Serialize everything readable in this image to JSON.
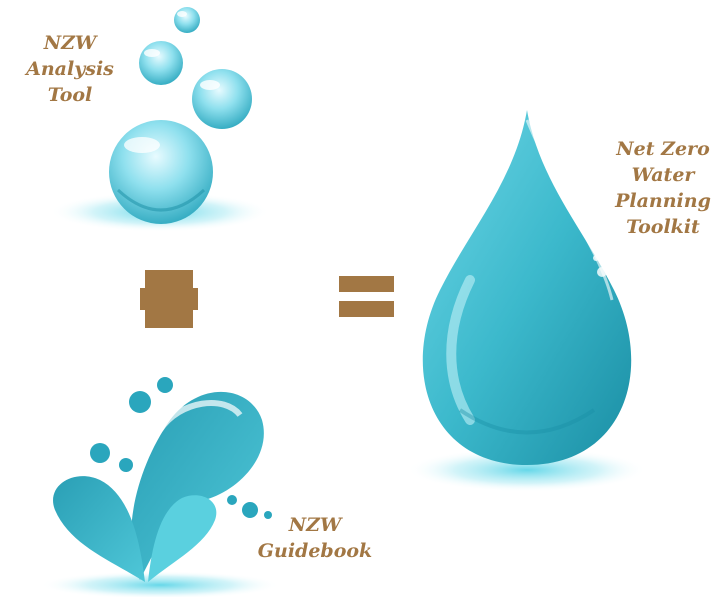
{
  "labels": {
    "analysis_tool": [
      "NZW",
      "Analysis",
      "Tool"
    ],
    "guidebook": [
      "NZW",
      "Guidebook"
    ],
    "toolkit": [
      "Net Zero",
      "Water",
      "Planning",
      "Toolkit"
    ]
  },
  "colors": {
    "label_text": "#a27744",
    "operator": "#a27744",
    "water": "#3fb8cc",
    "water_dark": "#1c8fa5",
    "glow": "#7fe0ef"
  }
}
